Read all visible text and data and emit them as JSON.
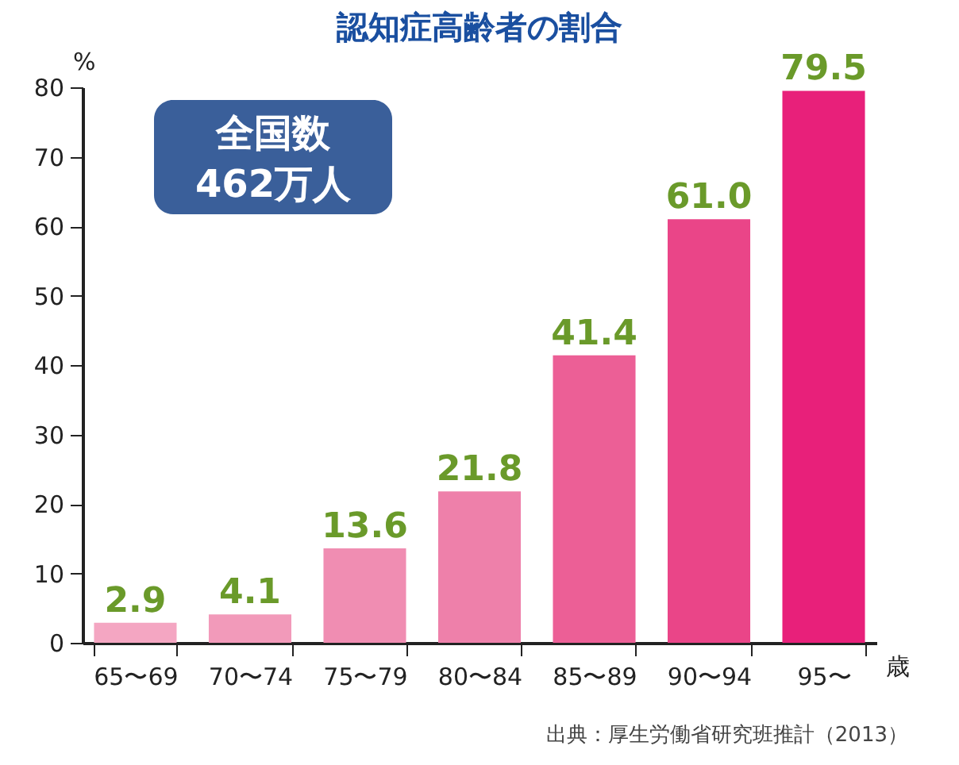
{
  "chart_data": {
    "type": "bar",
    "title": "認知症高齢者の割合",
    "categories": [
      "65〜69",
      "70〜74",
      "75〜79",
      "80〜84",
      "85〜89",
      "90〜94",
      "95〜"
    ],
    "values": [
      2.9,
      4.1,
      13.6,
      21.8,
      41.4,
      61.0,
      79.5
    ],
    "colors": [
      "#f4a6c2",
      "#f29aba",
      "#f08db2",
      "#ee80aa",
      "#ec5f96",
      "#ea4588",
      "#e8207a"
    ],
    "value_labels": [
      "2.9",
      "4.1",
      "13.6",
      "21.8",
      "41.4",
      "61.0",
      "79.5"
    ],
    "ylim": [
      0,
      80
    ],
    "yticks": [
      0,
      10,
      20,
      30,
      40,
      50,
      60,
      70,
      80
    ],
    "ylabel": "%",
    "xlabel": "歳",
    "annotations": [
      "全国数\n462万人",
      "出典：厚生労働省研究班推計（2013）"
    ]
  }
}
